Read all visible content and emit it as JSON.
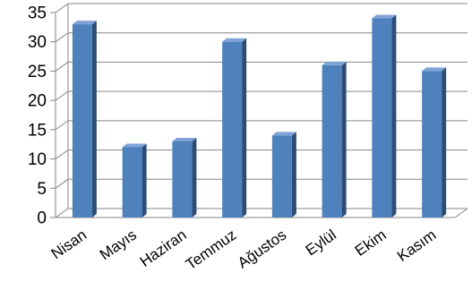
{
  "chart_data": {
    "type": "bar",
    "title": "",
    "xlabel": "",
    "ylabel": "",
    "categories": [
      "Nisan",
      "Mayıs",
      "Haziran",
      "Temmuz",
      "Ağustos",
      "Eylül",
      "Ekim",
      "Kasım"
    ],
    "values": [
      33,
      12,
      13,
      30,
      14,
      26,
      34,
      25
    ],
    "ylim": [
      0,
      35
    ],
    "yticks": [
      0,
      5,
      10,
      15,
      20,
      25,
      30,
      35
    ],
    "grid": true,
    "legend": "none",
    "bar_color": "#4f81bd",
    "three_d": true
  }
}
